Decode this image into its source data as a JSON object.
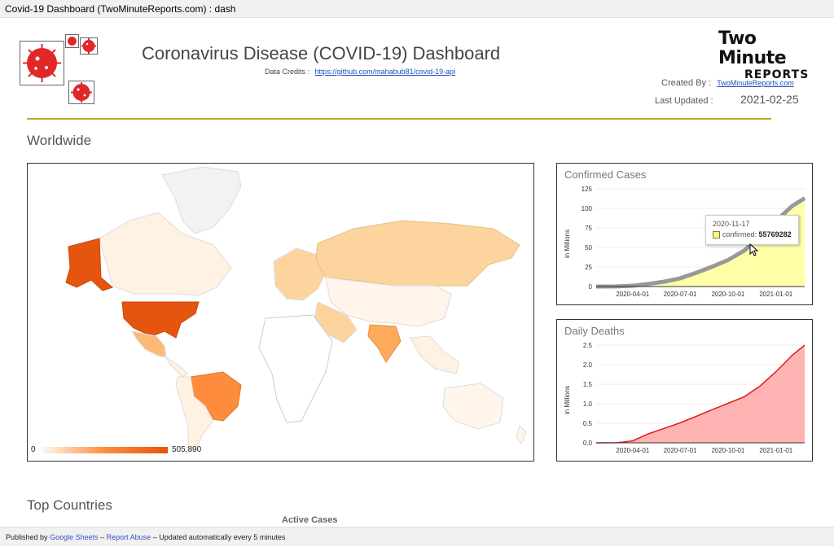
{
  "window": {
    "title": "Covid-19 Dashboard (TwoMinuteReports.com) : dash"
  },
  "header": {
    "title": "Coronavirus Disease (COVID-19) Dashboard",
    "credits_label": "Data Credits :",
    "credits_link": "https://github.com/mahabub81/covid-19-api",
    "brand_line1": "Two Minute",
    "brand_line2": "REPORTS",
    "created_label": "Created By :",
    "created_link": "TwoMinuteReports.com",
    "updated_label": "Last Updated :",
    "updated_value": "2021-02-25"
  },
  "sections": {
    "worldwide": "Worldwide",
    "top_countries": "Top Countries",
    "active_cases": "Active Cases"
  },
  "map": {
    "legend_min": "0",
    "legend_max": "505,890",
    "colors": {
      "high": "#e6550d",
      "mid": "#fd8d3c",
      "low": "#fdd49e",
      "lowest": "#fff5eb",
      "nodata": "#f2f2f2"
    }
  },
  "confirmed_chart": {
    "title": "Confirmed Cases",
    "ylabel": "in Millions",
    "tooltip_date": "2020-11-17",
    "tooltip_label": "confirmed:",
    "tooltip_value": "55769282",
    "chart_data": {
      "type": "area",
      "x": [
        "2020-01-22",
        "2020-03-01",
        "2020-04-01",
        "2020-05-01",
        "2020-06-01",
        "2020-07-01",
        "2020-08-01",
        "2020-09-01",
        "2020-10-01",
        "2020-11-01",
        "2020-11-17",
        "2020-12-01",
        "2021-01-01",
        "2021-02-01",
        "2021-02-25"
      ],
      "series": [
        {
          "name": "confirmed",
          "values": [
            0,
            0.1,
            1,
            3.3,
            6.2,
            10.5,
            17.6,
            25.5,
            34,
            46,
            55.8,
            63,
            84,
            103,
            113
          ]
        }
      ],
      "ylim": [
        0,
        125
      ],
      "yticks": [
        "0",
        "25",
        "50",
        "75",
        "100",
        "125"
      ],
      "xticks": [
        "2020-04-01",
        "2020-07-01",
        "2020-10-01",
        "2021-01-01"
      ],
      "colors": {
        "fill": "#ffffa8",
        "line": "#999999"
      }
    }
  },
  "deaths_chart": {
    "title": "Daily Deaths",
    "ylabel": "in Millions",
    "chart_data": {
      "type": "area",
      "x": [
        "2020-01-22",
        "2020-03-01",
        "2020-04-01",
        "2020-05-01",
        "2020-06-01",
        "2020-07-01",
        "2020-08-01",
        "2020-09-01",
        "2020-10-01",
        "2020-11-01",
        "2020-12-01",
        "2021-01-01",
        "2021-02-01",
        "2021-02-25"
      ],
      "series": [
        {
          "values": [
            0,
            0.003,
            0.05,
            0.23,
            0.37,
            0.51,
            0.68,
            0.85,
            1.01,
            1.18,
            1.45,
            1.82,
            2.24,
            2.5
          ]
        }
      ],
      "ylim": [
        0,
        2.5
      ],
      "yticks": [
        "0.0",
        "0.5",
        "1.0",
        "1.5",
        "2.0",
        "2.5"
      ],
      "xticks": [
        "2020-04-01",
        "2020-07-01",
        "2020-10-01",
        "2021-01-01"
      ],
      "colors": {
        "fill": "#ffb3b3",
        "line": "#e01b1b"
      }
    }
  },
  "footer": {
    "published_by": "Published by",
    "google_sheets": "Google Sheets",
    "dash1": "–",
    "report_abuse": "Report Abuse",
    "dash2": "–",
    "auto_update": "Updated automatically every 5 minutes"
  }
}
